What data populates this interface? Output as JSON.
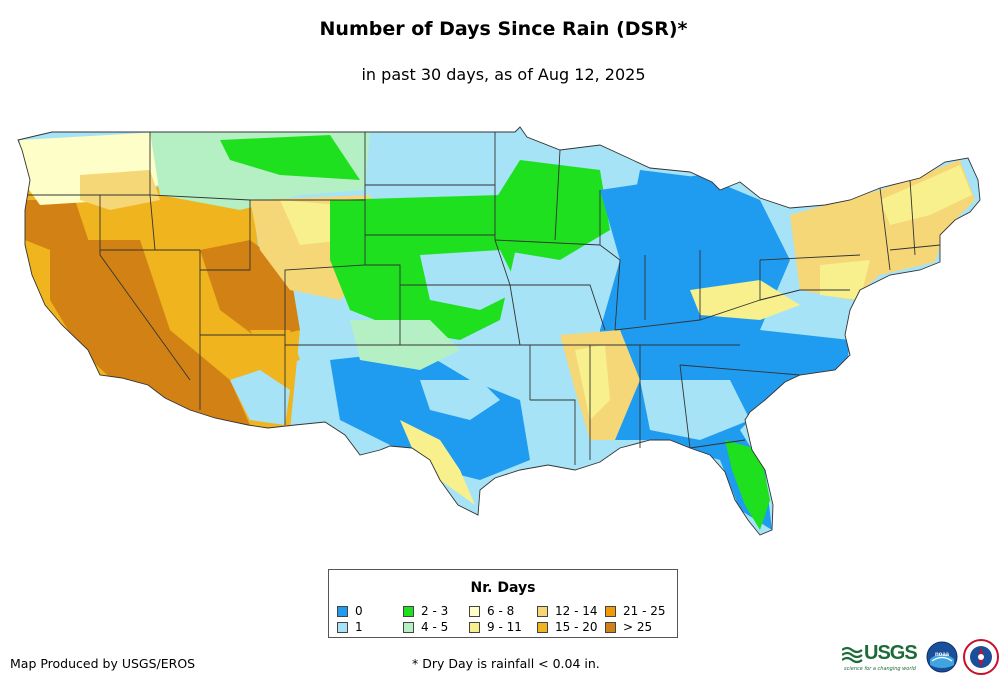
{
  "header": {
    "title": "Number of Days Since Rain (DSR)*",
    "subtitle": "in past 30 days, as of Aug 12, 2025"
  },
  "colors": {
    "background": "#ffffff",
    "state_border": "#333333"
  },
  "legend": {
    "title": "Nr. Days",
    "items": [
      {
        "label": "0",
        "color": "#1f9cf0"
      },
      {
        "label": "1",
        "color": "#a6e3f7"
      },
      {
        "label": "2 - 3",
        "color": "#1ee01e"
      },
      {
        "label": "4 - 5",
        "color": "#b4f0c4"
      },
      {
        "label": "6 - 8",
        "color": "#fefec8"
      },
      {
        "label": "9 - 11",
        "color": "#f7f08c"
      },
      {
        "label": "12 - 14",
        "color": "#f5d778"
      },
      {
        "label": "15 - 20",
        "color": "#f0b41e"
      },
      {
        "label": "21 - 25",
        "color": "#f09a0a"
      },
      {
        "label": "> 25",
        "color": "#d28214"
      }
    ]
  },
  "footer": {
    "credit": "Map Produced by USGS/EROS",
    "note": "* Dry Day is rainfall < 0.04 in."
  },
  "logos": {
    "usgs": {
      "text": "USGS",
      "tagline": "science for a changing world"
    },
    "noaa": {
      "text": "NOAA"
    },
    "nws": {
      "text": "NWS"
    }
  }
}
